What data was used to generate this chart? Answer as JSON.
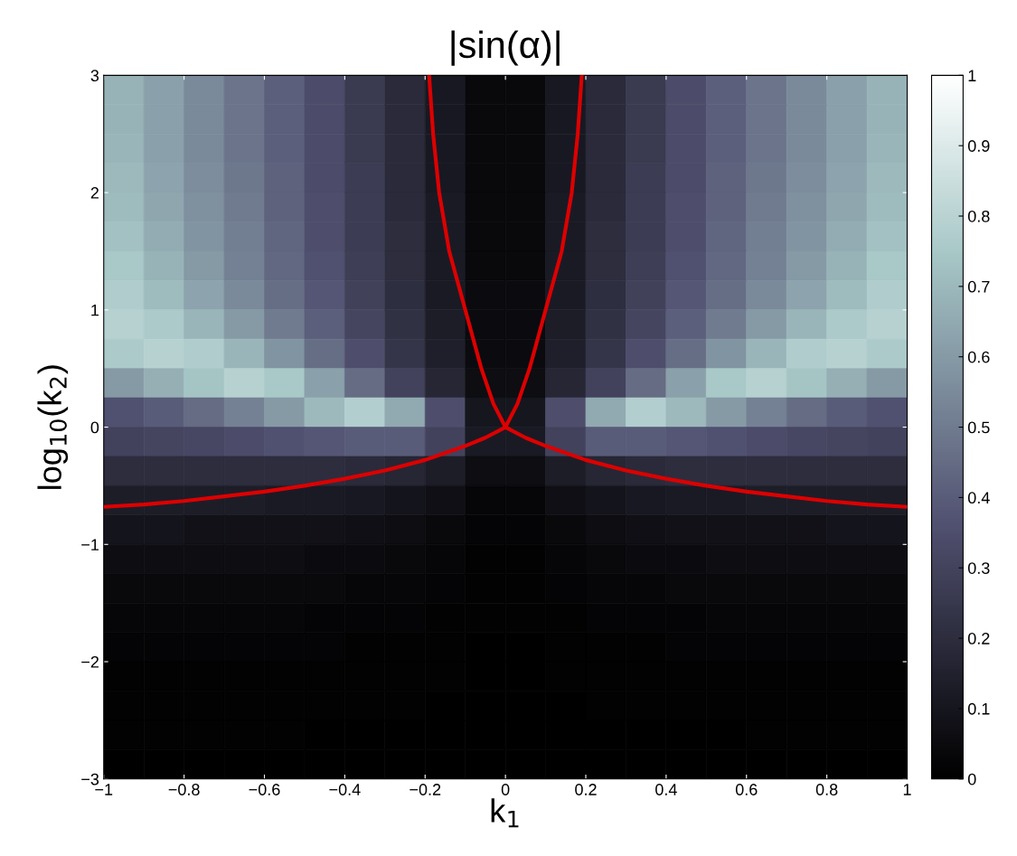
{
  "chart_data": {
    "type": "heatmap",
    "title": "|sin(α)|",
    "xlabel": "k$_{1}$",
    "ylabel": "log$_{10}$(k$_{2}$)",
    "xlim": [
      -1,
      1
    ],
    "ylim": [
      -3,
      3
    ],
    "xticks": [
      -1,
      -0.8,
      -0.6,
      -0.4,
      -0.2,
      0,
      0.2,
      0.4,
      0.6,
      0.8,
      1
    ],
    "yticks": [
      -3,
      -2,
      -1,
      0,
      1,
      2,
      3
    ],
    "clim": [
      0,
      1
    ],
    "cticks": [
      0,
      0.1,
      0.2,
      0.3,
      0.4,
      0.5,
      0.6,
      0.7,
      0.8,
      0.9,
      1
    ],
    "x": [
      -0.95,
      -0.85,
      -0.75,
      -0.65,
      -0.55,
      -0.45,
      -0.35,
      -0.25,
      -0.15,
      -0.05,
      0.05,
      0.15,
      0.25,
      0.35,
      0.45,
      0.55,
      0.65,
      0.75,
      0.85,
      0.95
    ],
    "y": [
      2.875,
      2.625,
      2.375,
      2.125,
      1.875,
      1.625,
      1.375,
      1.125,
      0.875,
      0.625,
      0.375,
      0.125,
      -0.125,
      -0.375,
      -0.625,
      -0.875,
      -1.125,
      -1.375,
      -1.625,
      -1.875,
      -2.125,
      -2.375,
      -2.625,
      -2.875
    ],
    "cells": [
      [
        0.68,
        0.62,
        0.55,
        0.48,
        0.41,
        0.34,
        0.26,
        0.19,
        0.11,
        0.04,
        0.04,
        0.11,
        0.19,
        0.26,
        0.34,
        0.41,
        0.48,
        0.55,
        0.62,
        0.68
      ],
      [
        0.68,
        0.62,
        0.55,
        0.48,
        0.41,
        0.34,
        0.26,
        0.19,
        0.11,
        0.04,
        0.04,
        0.11,
        0.19,
        0.26,
        0.34,
        0.41,
        0.48,
        0.55,
        0.62,
        0.68
      ],
      [
        0.69,
        0.62,
        0.55,
        0.48,
        0.41,
        0.34,
        0.26,
        0.19,
        0.11,
        0.04,
        0.04,
        0.11,
        0.19,
        0.26,
        0.34,
        0.41,
        0.48,
        0.55,
        0.62,
        0.69
      ],
      [
        0.7,
        0.63,
        0.56,
        0.49,
        0.42,
        0.34,
        0.27,
        0.19,
        0.11,
        0.04,
        0.04,
        0.11,
        0.19,
        0.27,
        0.34,
        0.42,
        0.49,
        0.56,
        0.63,
        0.7
      ],
      [
        0.71,
        0.64,
        0.57,
        0.5,
        0.42,
        0.35,
        0.27,
        0.19,
        0.12,
        0.04,
        0.04,
        0.12,
        0.19,
        0.27,
        0.35,
        0.42,
        0.5,
        0.57,
        0.64,
        0.71
      ],
      [
        0.73,
        0.66,
        0.58,
        0.51,
        0.43,
        0.35,
        0.27,
        0.2,
        0.12,
        0.04,
        0.04,
        0.12,
        0.2,
        0.27,
        0.35,
        0.43,
        0.51,
        0.58,
        0.66,
        0.73
      ],
      [
        0.75,
        0.68,
        0.6,
        0.52,
        0.44,
        0.36,
        0.28,
        0.2,
        0.12,
        0.04,
        0.04,
        0.12,
        0.2,
        0.28,
        0.36,
        0.44,
        0.52,
        0.6,
        0.68,
        0.75
      ],
      [
        0.77,
        0.71,
        0.63,
        0.55,
        0.46,
        0.38,
        0.29,
        0.21,
        0.12,
        0.05,
        0.05,
        0.12,
        0.21,
        0.29,
        0.38,
        0.46,
        0.55,
        0.63,
        0.71,
        0.77
      ],
      [
        0.79,
        0.76,
        0.69,
        0.6,
        0.5,
        0.41,
        0.31,
        0.22,
        0.13,
        0.05,
        0.05,
        0.13,
        0.22,
        0.31,
        0.41,
        0.5,
        0.6,
        0.69,
        0.76,
        0.79
      ],
      [
        0.76,
        0.79,
        0.77,
        0.69,
        0.58,
        0.46,
        0.35,
        0.24,
        0.14,
        0.05,
        0.05,
        0.14,
        0.24,
        0.35,
        0.46,
        0.58,
        0.69,
        0.77,
        0.79,
        0.76
      ],
      [
        0.6,
        0.67,
        0.74,
        0.79,
        0.75,
        0.62,
        0.45,
        0.3,
        0.17,
        0.06,
        0.06,
        0.17,
        0.3,
        0.45,
        0.62,
        0.75,
        0.79,
        0.74,
        0.67,
        0.6
      ],
      [
        0.36,
        0.4,
        0.45,
        0.52,
        0.6,
        0.7,
        0.78,
        0.65,
        0.35,
        0.1,
        0.1,
        0.35,
        0.65,
        0.78,
        0.7,
        0.6,
        0.52,
        0.45,
        0.4,
        0.36
      ],
      [
        0.3,
        0.31,
        0.32,
        0.34,
        0.36,
        0.38,
        0.4,
        0.4,
        0.3,
        0.12,
        0.12,
        0.3,
        0.4,
        0.4,
        0.38,
        0.36,
        0.34,
        0.32,
        0.31,
        0.3
      ],
      [
        0.2,
        0.2,
        0.2,
        0.2,
        0.2,
        0.2,
        0.19,
        0.17,
        0.13,
        0.06,
        0.06,
        0.13,
        0.17,
        0.19,
        0.2,
        0.2,
        0.2,
        0.2,
        0.2,
        0.2
      ],
      [
        0.13,
        0.13,
        0.13,
        0.13,
        0.12,
        0.12,
        0.11,
        0.09,
        0.07,
        0.03,
        0.03,
        0.07,
        0.09,
        0.11,
        0.12,
        0.12,
        0.13,
        0.13,
        0.13,
        0.13
      ],
      [
        0.09,
        0.09,
        0.08,
        0.08,
        0.08,
        0.08,
        0.07,
        0.06,
        0.04,
        0.02,
        0.02,
        0.04,
        0.06,
        0.07,
        0.08,
        0.08,
        0.08,
        0.08,
        0.09,
        0.09
      ],
      [
        0.06,
        0.06,
        0.06,
        0.06,
        0.06,
        0.05,
        0.05,
        0.04,
        0.03,
        0.01,
        0.01,
        0.03,
        0.04,
        0.05,
        0.05,
        0.06,
        0.06,
        0.06,
        0.06,
        0.06
      ],
      [
        0.04,
        0.04,
        0.04,
        0.04,
        0.04,
        0.04,
        0.03,
        0.03,
        0.02,
        0.01,
        0.01,
        0.02,
        0.03,
        0.03,
        0.04,
        0.04,
        0.04,
        0.04,
        0.04,
        0.04
      ],
      [
        0.03,
        0.03,
        0.03,
        0.03,
        0.03,
        0.02,
        0.02,
        0.02,
        0.01,
        0.01,
        0.01,
        0.01,
        0.02,
        0.02,
        0.02,
        0.03,
        0.03,
        0.03,
        0.03,
        0.03
      ],
      [
        0.02,
        0.02,
        0.02,
        0.02,
        0.02,
        0.02,
        0.01,
        0.01,
        0.01,
        0,
        0,
        0.01,
        0.01,
        0.01,
        0.02,
        0.02,
        0.02,
        0.02,
        0.02,
        0.02
      ],
      [
        0.01,
        0.01,
        0.01,
        0.01,
        0.01,
        0.01,
        0.01,
        0.01,
        0.01,
        0,
        0,
        0.01,
        0.01,
        0.01,
        0.01,
        0.01,
        0.01,
        0.01,
        0.01,
        0.01
      ],
      [
        0.01,
        0.01,
        0.01,
        0.01,
        0.01,
        0.01,
        0.01,
        0.01,
        0,
        0,
        0,
        0,
        0.01,
        0.01,
        0.01,
        0.01,
        0.01,
        0.01,
        0.01,
        0.01
      ],
      [
        0.01,
        0.01,
        0.01,
        0.01,
        0.01,
        0,
        0,
        0,
        0,
        0,
        0,
        0,
        0,
        0,
        0,
        0,
        0.01,
        0.01,
        0.01,
        0.01
      ],
      [
        0,
        0,
        0,
        0,
        0,
        0,
        0,
        0,
        0,
        0,
        0,
        0,
        0,
        0,
        0,
        0,
        0,
        0,
        0,
        0
      ]
    ],
    "series": [
      {
        "type": "line",
        "color": "#dd0000",
        "x": [
          -0.19,
          -0.18,
          -0.165,
          -0.14,
          -0.1,
          -0.06,
          -0.03,
          0,
          0.05,
          0.1,
          0.2,
          0.3,
          0.4,
          0.5,
          0.6,
          0.7,
          0.8,
          0.9,
          1
        ],
        "values": [
          3,
          2.5,
          2,
          1.5,
          1,
          0.5,
          0.2,
          0,
          -0.09,
          -0.16,
          -0.28,
          -0.37,
          -0.44,
          -0.5,
          -0.55,
          -0.59,
          -0.63,
          -0.66,
          -0.68
        ]
      },
      {
        "type": "line",
        "color": "#dd0000",
        "x": [
          0.19,
          0.18,
          0.165,
          0.14,
          0.1,
          0.06,
          0.03,
          0,
          -0.05,
          -0.1,
          -0.2,
          -0.3,
          -0.4,
          -0.5,
          -0.6,
          -0.7,
          -0.8,
          -0.9,
          -1
        ],
        "values": [
          3,
          2.5,
          2,
          1.5,
          1,
          0.5,
          0.2,
          0,
          -0.09,
          -0.16,
          -0.28,
          -0.37,
          -0.44,
          -0.5,
          -0.55,
          -0.59,
          -0.63,
          -0.66,
          -0.68
        ]
      }
    ]
  }
}
